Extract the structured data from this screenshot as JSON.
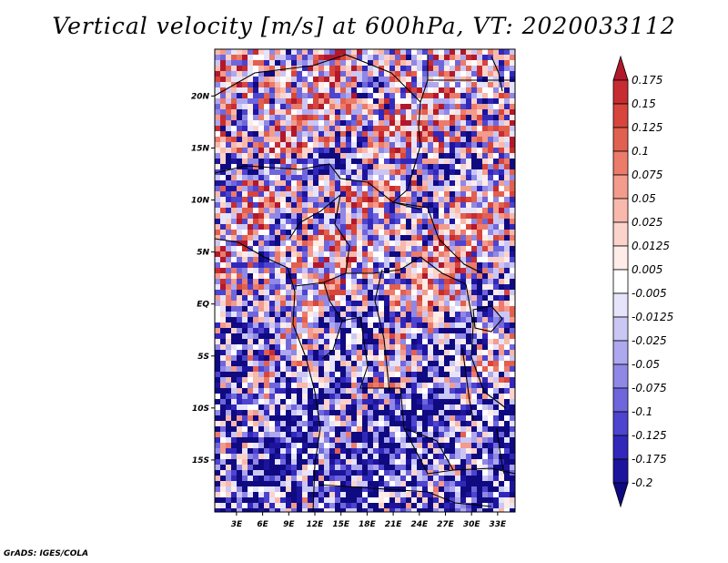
{
  "title": "Vertical velocity [m/s] at 600hPa, VT: 2020033112",
  "credit": "GrADS: IGES/COLA",
  "map": {
    "region": "Central Africa",
    "lat_labels": [
      "20N",
      "15N",
      "10N",
      "5N",
      "EQ",
      "5S",
      "10S",
      "15S"
    ],
    "lat_values": [
      20,
      15,
      10,
      5,
      0,
      -5,
      -10,
      -15
    ],
    "lon_labels": [
      "3E",
      "6E",
      "9E",
      "12E",
      "15E",
      "18E",
      "21E",
      "24E",
      "27E",
      "30E",
      "33E"
    ],
    "lon_values": [
      3,
      6,
      9,
      12,
      15,
      18,
      21,
      24,
      27,
      30,
      33
    ],
    "lon_range": [
      0.5,
      35
    ],
    "lat_range": [
      -20,
      24.5
    ]
  },
  "colorbar": {
    "labels": [
      "0.175",
      "0.15",
      "0.125",
      "0.1",
      "0.075",
      "0.05",
      "0.025",
      "0.0125",
      "0.005",
      "-0.005",
      "-0.0125",
      "-0.025",
      "-0.05",
      "-0.075",
      "-0.1",
      "-0.125",
      "-0.175",
      "-0.2"
    ],
    "colors": [
      "#b2182b",
      "#c72d30",
      "#d7453d",
      "#e2604f",
      "#ec7b6a",
      "#f39b8c",
      "#f8b9ac",
      "#fbd3ca",
      "#feece8",
      "#ffffff",
      "#e6e4fa",
      "#cbc7f4",
      "#aea8ee",
      "#8f88e6",
      "#6f66dd",
      "#4d44cf",
      "#3128bb",
      "#1d149d",
      "#0f0a80"
    ]
  }
}
